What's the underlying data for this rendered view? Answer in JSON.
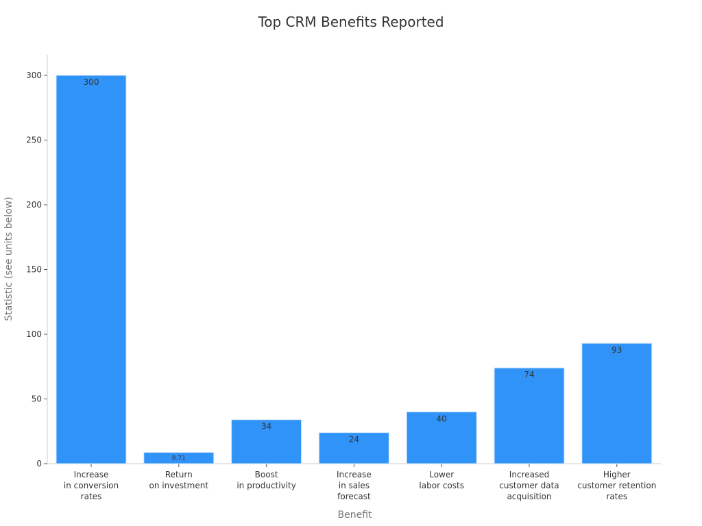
{
  "chart_data": {
    "type": "bar",
    "title": "Top CRM Benefits Reported",
    "xlabel": "Benefit",
    "ylabel": "Statistic (see units below)",
    "categories": [
      "Increase\nin conversion\nrates",
      "Return\non investment",
      "Boost\nin productivity",
      "Increase\nin sales\nforecast",
      "Lower\nlabor costs",
      "Increased\ncustomer data\nacquisition",
      "Higher\ncustomer retention\nrates"
    ],
    "values": [
      300,
      8.71,
      34,
      24,
      40,
      74,
      93
    ],
    "data_labels": [
      "300",
      "8.71",
      "34",
      "24",
      "40",
      "74",
      "93"
    ],
    "ylim": [
      0,
      315
    ],
    "yticks": [
      0,
      50,
      100,
      150,
      200,
      250,
      300
    ],
    "bar_color": "#2f93f7",
    "grid": false,
    "legend": "none"
  }
}
